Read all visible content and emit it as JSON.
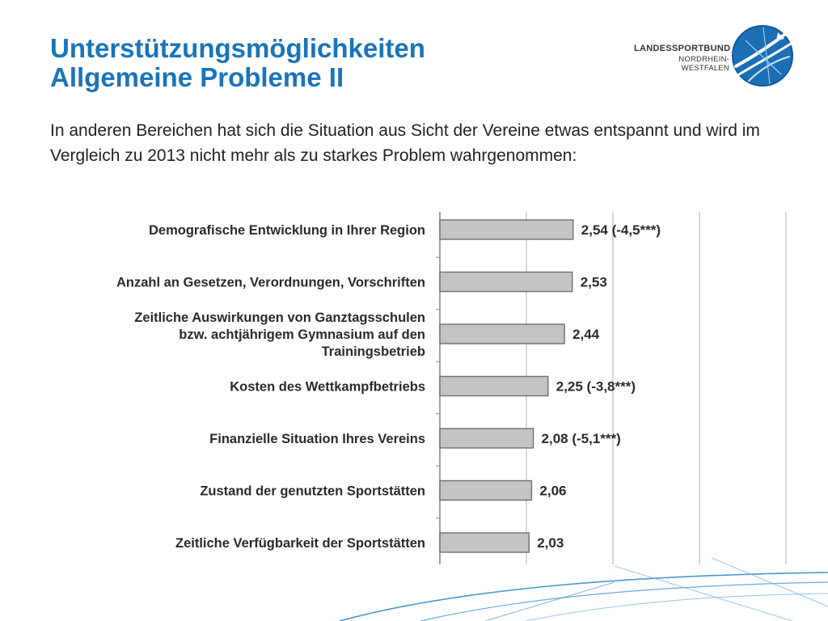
{
  "slide": {
    "title_line1": "Unterstützungsmöglichkeiten",
    "title_line2": "Allgemeine Probleme II",
    "intro": "In anderen Bereichen hat sich die Situation aus Sicht der Vereine etwas entspannt und wird im Vergleich zu 2013 nicht mehr als zu starkes Problem wahrgenommen:"
  },
  "logo": {
    "line1": "LANDESSPORTBUND",
    "line2": "NORDRHEIN-WESTFALEN"
  },
  "colors": {
    "title": "#1a74b8",
    "bar_fill": "#c4c4c4",
    "bar_stroke": "#6e6e6e",
    "logo_blue": "#1a6fb5",
    "swoosh": "#2c86c8"
  },
  "chart_data": {
    "type": "bar",
    "orientation": "horizontal",
    "categories": [
      [
        "Demografische Entwicklung in Ihrer Region"
      ],
      [
        "Anzahl an Gesetzen, Verordnungen, Vorschriften"
      ],
      [
        "Zeitliche Auswirkungen von Ganztagsschulen",
        "bzw. achtjährigem Gymnasium  auf den",
        "Trainingsbetrieb"
      ],
      [
        "Kosten des Wettkampfbetriebs"
      ],
      [
        "Finanzielle Situation Ihres Vereins"
      ],
      [
        "Zustand der genutzten Sportstätten"
      ],
      [
        "Zeitliche Verfügbarkeit der Sportstätten"
      ]
    ],
    "values": [
      2.54,
      2.53,
      2.44,
      2.25,
      2.08,
      2.06,
      2.03
    ],
    "value_labels": [
      "2,54 (-4,5***)",
      "2,53",
      "2,44",
      "2,25 (-3,8***)",
      "2,08 (-5,1***)",
      "2,06",
      "2,03"
    ],
    "xlim": [
      1,
      5
    ],
    "grid": true,
    "title": "",
    "xlabel": "",
    "ylabel": ""
  }
}
